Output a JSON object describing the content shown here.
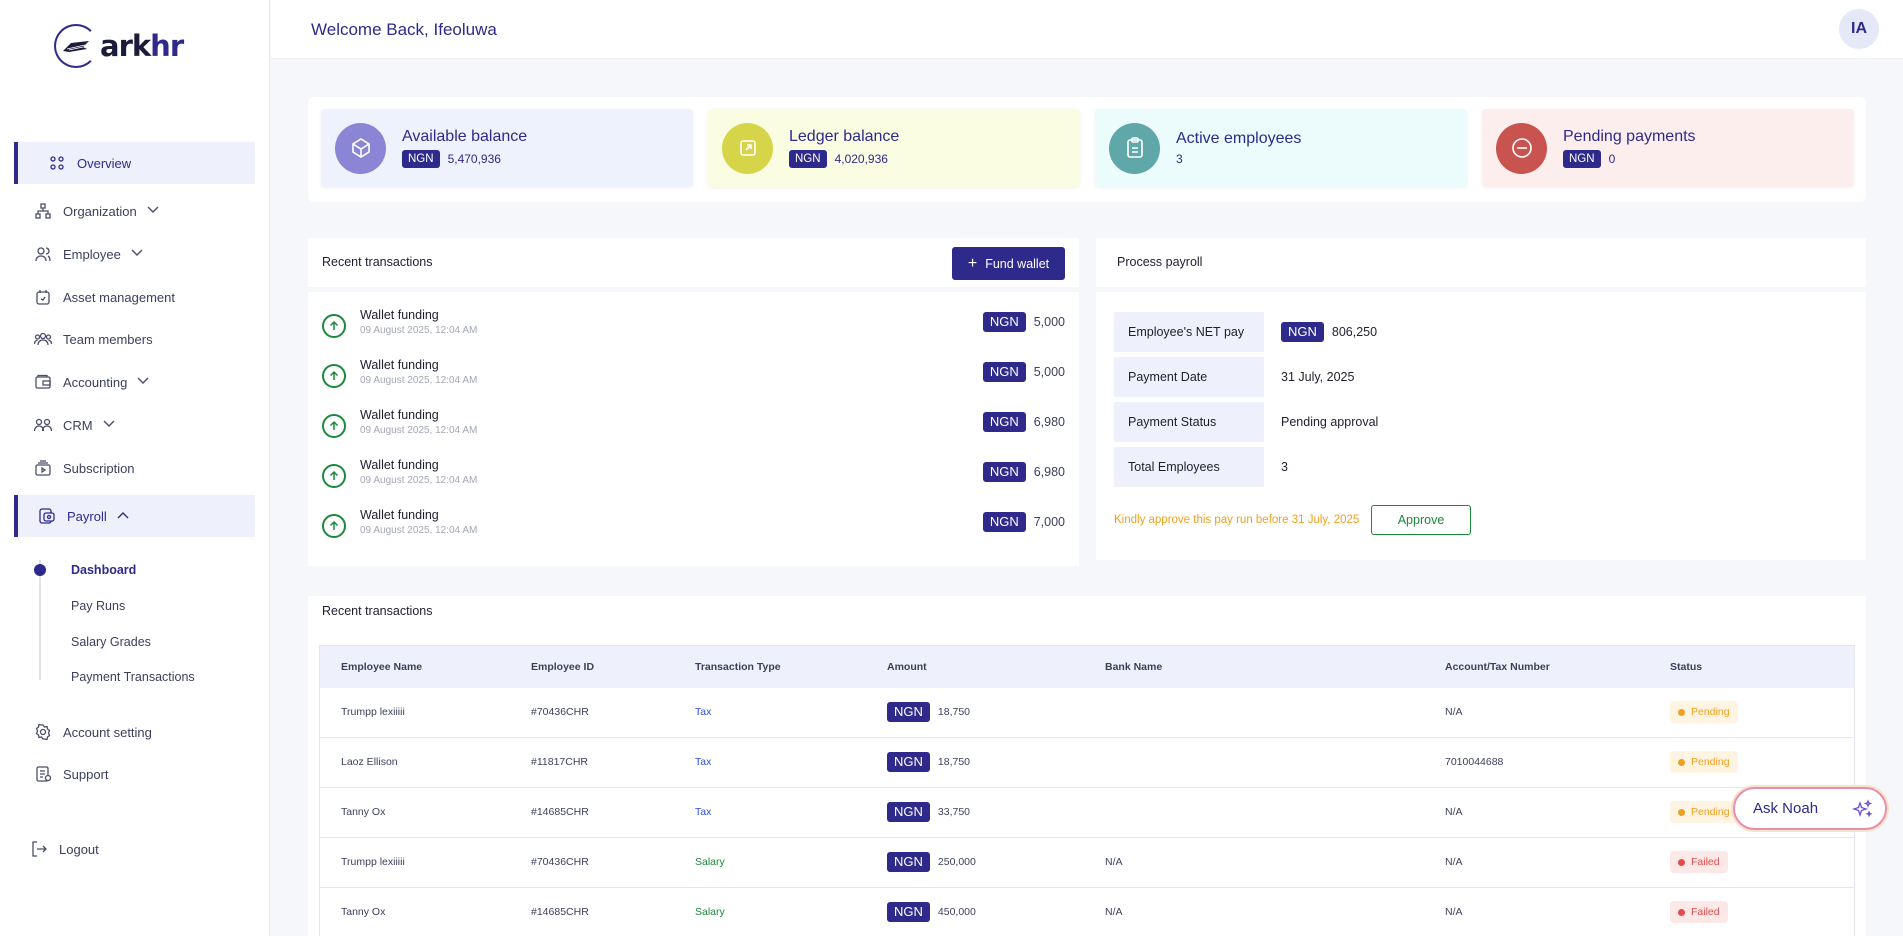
{
  "brand": {
    "name_a": "ark",
    "name_b": "hr"
  },
  "header": {
    "welcome": "Welcome Back, Ifeoluwa",
    "avatar_initials": "IA"
  },
  "sidebar": {
    "items": [
      {
        "label": "Overview",
        "icon": "grid-icon"
      },
      {
        "label": "Organization",
        "icon": "org-icon"
      },
      {
        "label": "Employee",
        "icon": "users-icon"
      },
      {
        "label": "Asset management",
        "icon": "asset-icon"
      },
      {
        "label": "Team members",
        "icon": "team-icon"
      },
      {
        "label": "Accounting",
        "icon": "wallet-icon"
      },
      {
        "label": "CRM",
        "icon": "crm-icon"
      },
      {
        "label": "Subscription",
        "icon": "subscription-icon"
      },
      {
        "label": "Payroll",
        "icon": "payroll-icon"
      }
    ],
    "payroll_sub": [
      "Dashboard",
      "Pay Runs",
      "Salary Grades",
      "Payment Transactions"
    ],
    "bottom": [
      {
        "label": "Account setting",
        "icon": "gear-icon"
      },
      {
        "label": "Support",
        "icon": "support-icon"
      },
      {
        "label": "Logout",
        "icon": "logout-icon"
      }
    ]
  },
  "cards": [
    {
      "title": "Available balance",
      "currency": "NGN",
      "value": "5,470,936",
      "bg": "#eef2fd",
      "icon_bg": "#8b85d6"
    },
    {
      "title": "Ledger balance",
      "currency": "NGN",
      "value": "4,020,936",
      "bg": "#fbfde2",
      "icon_bg": "#d6d54a"
    },
    {
      "title": "Active employees",
      "currency": "",
      "value": "3",
      "bg": "#ecfbfc",
      "icon_bg": "#5fa7a9"
    },
    {
      "title": "Pending payments",
      "currency": "NGN",
      "value": "0",
      "bg": "#fdeeee",
      "icon_bg": "#c9534f"
    }
  ],
  "recent_transactions": {
    "title": "Recent transactions",
    "fund_button": "Fund wallet",
    "items": [
      {
        "label": "Wallet funding",
        "date": "09 August 2025, 12:04 AM",
        "currency": "NGN",
        "amount": "5,000"
      },
      {
        "label": "Wallet funding",
        "date": "09 August 2025, 12:04 AM",
        "currency": "NGN",
        "amount": "5,000"
      },
      {
        "label": "Wallet funding",
        "date": "09 August 2025, 12:04 AM",
        "currency": "NGN",
        "amount": "6,980"
      },
      {
        "label": "Wallet funding",
        "date": "09 August 2025, 12:04 AM",
        "currency": "NGN",
        "amount": "6,980"
      },
      {
        "label": "Wallet funding",
        "date": "09 August 2025, 12:04 AM",
        "currency": "NGN",
        "amount": "7,000"
      }
    ]
  },
  "process_payroll": {
    "title": "Process payroll",
    "rows": [
      {
        "key": "Employee's NET pay",
        "currency": "NGN",
        "value": "806,250"
      },
      {
        "key": "Payment Date",
        "currency": "",
        "value": "31 July, 2025"
      },
      {
        "key": "Payment Status",
        "currency": "",
        "value": "Pending approval"
      },
      {
        "key": "Total Employees",
        "currency": "",
        "value": "3"
      }
    ],
    "note": "Kindly approve this pay run before 31 July, 2025",
    "approve_button": "Approve"
  },
  "table": {
    "title": "Recent transactions",
    "columns": [
      "Employee Name",
      "Employee ID",
      "Transaction Type",
      "Amount",
      "Bank Name",
      "Account/Tax Number",
      "Status"
    ],
    "rows": [
      {
        "name": "Trumpp lexiiiii",
        "id": "#70436CHR",
        "type": "Tax",
        "currency": "NGN",
        "amount": "18,750",
        "bank": "",
        "account": "N/A",
        "status": "Pending"
      },
      {
        "name": "Laoz Ellison",
        "id": "#11817CHR",
        "type": "Tax",
        "currency": "NGN",
        "amount": "18,750",
        "bank": "",
        "account": "7010044688",
        "status": "Pending"
      },
      {
        "name": "Tanny Ox",
        "id": "#14685CHR",
        "type": "Tax",
        "currency": "NGN",
        "amount": "33,750",
        "bank": "",
        "account": "N/A",
        "status": "Pending"
      },
      {
        "name": "Trumpp lexiiiii",
        "id": "#70436CHR",
        "type": "Salary",
        "currency": "NGN",
        "amount": "250,000",
        "bank": "N/A",
        "account": "N/A",
        "status": "Failed"
      },
      {
        "name": "Tanny Ox",
        "id": "#14685CHR",
        "type": "Salary",
        "currency": "NGN",
        "amount": "450,000",
        "bank": "N/A",
        "account": "N/A",
        "status": "Failed"
      }
    ]
  },
  "assistant": {
    "label": "Ask Noah"
  }
}
